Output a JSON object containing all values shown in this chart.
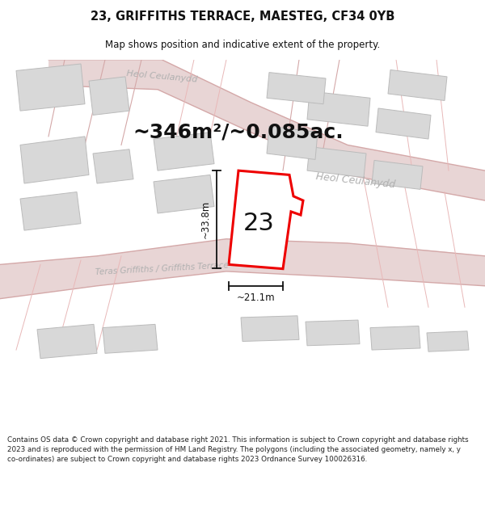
{
  "title": "23, GRIFFITHS TERRACE, MAESTEG, CF34 0YB",
  "subtitle": "Map shows position and indicative extent of the property.",
  "area_text": "~346m²/~0.085ac.",
  "number_label": "23",
  "dim_width": "~21.1m",
  "dim_height": "~33.8m",
  "footer_text": "Contains OS data © Crown copyright and database right 2021. This information is subject to Crown copyright and database rights 2023 and is reproduced with the permission of HM Land Registry. The polygons (including the associated geometry, namely x, y co-ordinates) are subject to Crown copyright and database rights 2023 Ordnance Survey 100026316.",
  "road_fill": "#e8d5d5",
  "road_line": "#d4a8a8",
  "building_fill": "#d8d8d8",
  "building_edge": "#bbbbbb",
  "plot_fill": "#ffffff",
  "plot_edge": "#ee0000",
  "street_color": "#b0b0b0",
  "dim_color": "#111111",
  "title_color": "#111111",
  "map_bg": "#f8f8f8"
}
